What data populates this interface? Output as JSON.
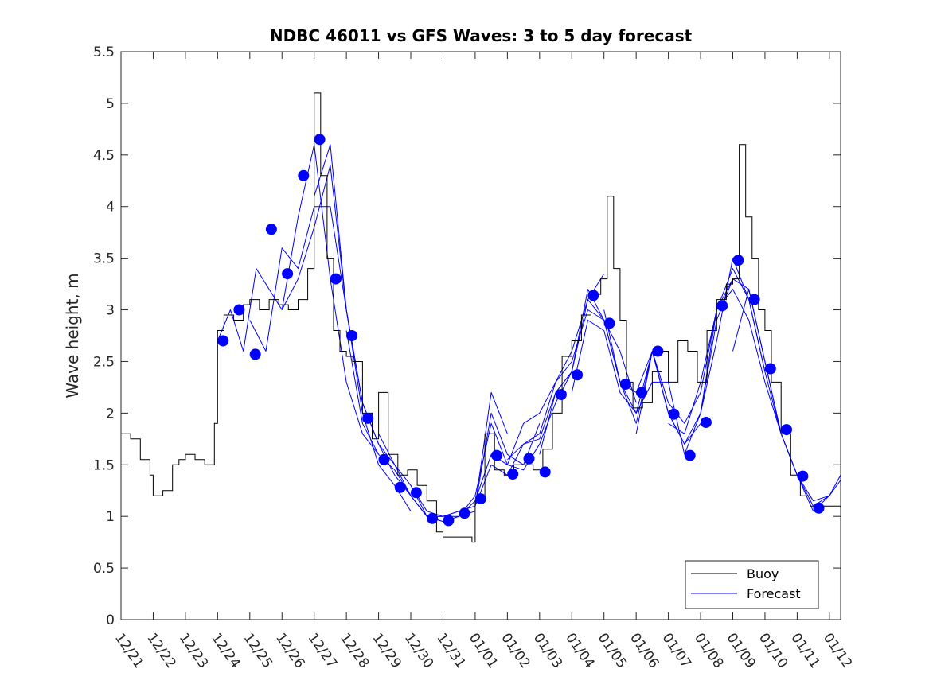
{
  "chart_data": {
    "type": "line",
    "title": "NDBC 46011 vs GFS Waves: 3 to 5 day forecast",
    "xlabel": "",
    "ylabel": "Wave height, m",
    "ylim": [
      0,
      5.5
    ],
    "yticks": [
      0,
      0.5,
      1,
      1.5,
      2,
      2.5,
      3,
      3.5,
      4,
      4.5,
      5,
      5.5
    ],
    "ytick_labels": [
      "0",
      "0.5",
      "1",
      "1.5",
      "2",
      "2.5",
      "3",
      "3.5",
      "4",
      "4.5",
      "5",
      "5.5"
    ],
    "xlim_days": [
      0,
      22.35
    ],
    "xticks_days": [
      0,
      1,
      2,
      3,
      4,
      5,
      6,
      7,
      8,
      9,
      10,
      11,
      12,
      13,
      14,
      15,
      16,
      17,
      18,
      19,
      20,
      21,
      22
    ],
    "xtick_labels": [
      "12/21",
      "12/22",
      "12/23",
      "12/24",
      "12/25",
      "12/26",
      "12/27",
      "12/28",
      "12/29",
      "12/30",
      "12/31",
      "01/01",
      "01/02",
      "01/03",
      "01/04",
      "01/05",
      "01/06",
      "01/07",
      "01/08",
      "01/09",
      "01/10",
      "01/11",
      "01/12"
    ],
    "grid": false,
    "legend": {
      "position": "bottom-right",
      "entries": [
        {
          "label": "Buoy",
          "color": "#000000"
        },
        {
          "label": "Forecast",
          "color": "#0000ff"
        }
      ]
    },
    "buoy_series": {
      "name": "Buoy",
      "color": "#000000",
      "x_days": [
        0,
        0.3,
        0.6,
        0.9,
        1.0,
        1.3,
        1.6,
        1.8,
        2.0,
        2.3,
        2.6,
        2.9,
        3.0,
        3.2,
        3.5,
        3.8,
        4.0,
        4.3,
        4.6,
        4.9,
        5.2,
        5.5,
        5.8,
        6.0,
        6.2,
        6.4,
        6.6,
        6.8,
        7.0,
        7.2,
        7.5,
        7.8,
        8.0,
        8.3,
        8.6,
        8.9,
        9.2,
        9.5,
        9.8,
        10.0,
        10.3,
        10.6,
        10.9,
        11.0,
        11.3,
        11.6,
        11.9,
        12.2,
        12.5,
        12.8,
        13.1,
        13.4,
        13.7,
        14.0,
        14.3,
        14.6,
        14.9,
        15.1,
        15.3,
        15.5,
        15.7,
        15.9,
        16.2,
        16.5,
        16.8,
        17.0,
        17.3,
        17.6,
        17.9,
        18.2,
        18.5,
        18.8,
        19.0,
        19.2,
        19.4,
        19.6,
        19.8,
        20.0,
        20.2,
        20.5,
        20.8,
        21.1,
        21.4,
        21.7,
        22.0,
        22.35
      ],
      "values": [
        1.8,
        1.75,
        1.55,
        1.4,
        1.2,
        1.25,
        1.5,
        1.55,
        1.6,
        1.55,
        1.5,
        1.9,
        2.8,
        2.95,
        2.9,
        3.05,
        3.1,
        3.0,
        3.1,
        3.05,
        3.0,
        3.1,
        3.4,
        5.1,
        4.3,
        3.5,
        2.8,
        2.6,
        2.55,
        2.5,
        2.0,
        1.75,
        2.2,
        1.6,
        1.4,
        1.45,
        1.3,
        1.15,
        0.85,
        0.8,
        0.8,
        0.8,
        0.75,
        1.15,
        1.8,
        1.45,
        1.4,
        1.5,
        1.5,
        1.45,
        1.65,
        2.0,
        2.55,
        2.7,
        2.95,
        3.15,
        3.3,
        4.1,
        3.4,
        2.9,
        2.3,
        2.05,
        2.1,
        2.4,
        2.6,
        2.3,
        2.7,
        2.6,
        2.3,
        2.8,
        3.1,
        3.25,
        3.3,
        4.6,
        3.9,
        3.5,
        3.0,
        2.8,
        2.3,
        1.8,
        1.4,
        1.2,
        1.1,
        1.1,
        1.1,
        1.25
      ]
    },
    "forecast_series": [
      {
        "name": "Forecast",
        "x_days": [
          3.0,
          3.4,
          3.8,
          4.2,
          4.6,
          5.0,
          5.5,
          6.0,
          6.5,
          7.0,
          7.5,
          8.0
        ],
        "values": [
          2.7,
          3.0,
          2.6,
          3.4,
          3.2,
          3.0,
          3.9,
          4.6,
          3.3,
          2.3,
          1.8,
          1.6
        ]
      },
      {
        "name": "Forecast",
        "x_days": [
          4.0,
          4.5,
          5.0,
          5.5,
          6.0,
          6.5,
          7.0,
          7.5,
          8.0,
          8.5,
          9.0
        ],
        "values": [
          2.9,
          2.6,
          3.6,
          3.4,
          4.0,
          4.0,
          3.0,
          2.0,
          1.5,
          1.3,
          1.05
        ]
      },
      {
        "name": "Forecast",
        "x_days": [
          5.0,
          5.5,
          6.0,
          6.5,
          7.0,
          7.5,
          8.0,
          8.5,
          9.0,
          9.5,
          10.0
        ],
        "values": [
          3.0,
          3.3,
          3.8,
          4.4,
          3.0,
          2.1,
          1.7,
          1.4,
          1.2,
          1.0,
          0.95
        ]
      },
      {
        "name": "Forecast",
        "x_days": [
          6.0,
          6.5,
          7.0,
          7.5,
          8.0,
          8.5,
          9.0,
          9.5,
          10.0,
          10.5,
          11.0
        ],
        "values": [
          4.1,
          4.6,
          3.0,
          2.1,
          1.7,
          1.5,
          1.3,
          1.05,
          1.0,
          1.0,
          1.05
        ]
      },
      {
        "name": "Forecast",
        "x_days": [
          7.0,
          7.5,
          8.0,
          8.5,
          9.0,
          9.5,
          10.0,
          10.5,
          11.0,
          11.5,
          12.0
        ],
        "values": [
          2.8,
          1.9,
          1.6,
          1.45,
          1.2,
          1.0,
          1.0,
          1.05,
          1.1,
          2.2,
          1.8
        ]
      },
      {
        "name": "Forecast",
        "x_days": [
          8.0,
          8.5,
          9.0,
          9.5,
          10.0,
          10.5,
          11.0,
          11.5,
          12.0,
          12.5,
          13.0
        ],
        "values": [
          1.8,
          1.5,
          1.2,
          1.0,
          1.0,
          1.05,
          1.1,
          2.0,
          1.6,
          1.5,
          1.9
        ]
      },
      {
        "name": "Forecast",
        "x_days": [
          9.0,
          9.5,
          10.0,
          10.5,
          11.0,
          11.5,
          12.0,
          12.5,
          13.0,
          13.5,
          14.0
        ],
        "values": [
          1.3,
          1.0,
          0.95,
          1.0,
          1.2,
          1.9,
          1.5,
          1.45,
          1.7,
          2.1,
          2.4
        ]
      },
      {
        "name": "Forecast",
        "x_days": [
          10.0,
          10.5,
          11.0,
          11.5,
          12.0,
          12.5,
          13.0,
          13.5,
          14.0,
          14.5,
          15.0
        ],
        "values": [
          0.95,
          1.0,
          1.15,
          1.6,
          1.5,
          1.9,
          2.0,
          2.3,
          2.6,
          3.1,
          3.35
        ]
      },
      {
        "name": "Forecast",
        "x_days": [
          11.0,
          11.5,
          12.0,
          12.5,
          13.0,
          13.5,
          14.0,
          14.5,
          15.0,
          15.5,
          16.0
        ],
        "values": [
          1.1,
          1.5,
          1.4,
          1.7,
          1.8,
          2.3,
          2.5,
          3.0,
          2.9,
          2.6,
          2.1
        ]
      },
      {
        "name": "Forecast",
        "x_days": [
          12.0,
          12.5,
          13.0,
          13.5,
          14.0,
          14.5,
          15.0,
          15.5,
          16.0,
          16.5,
          17.0
        ],
        "values": [
          1.55,
          1.7,
          1.75,
          2.2,
          2.4,
          3.2,
          2.9,
          2.3,
          2.2,
          2.6,
          2.0
        ]
      },
      {
        "name": "Forecast",
        "x_days": [
          13.0,
          13.5,
          14.0,
          14.5,
          15.0,
          15.5,
          16.0,
          16.5,
          17.0,
          17.5,
          18.0
        ],
        "values": [
          1.6,
          2.2,
          2.4,
          3.1,
          2.9,
          2.3,
          2.0,
          2.6,
          2.0,
          1.7,
          1.9
        ]
      },
      {
        "name": "Forecast",
        "x_days": [
          14.0,
          14.5,
          15.0,
          15.5,
          16.0,
          16.5,
          17.0,
          17.5,
          18.0,
          18.5,
          19.0
        ],
        "values": [
          2.2,
          2.9,
          2.8,
          2.2,
          2.0,
          2.3,
          2.3,
          1.6,
          2.0,
          2.9,
          3.3
        ]
      },
      {
        "name": "Forecast",
        "x_days": [
          15.0,
          15.5,
          16.0,
          16.5,
          17.0,
          17.5,
          18.0,
          18.5,
          19.0,
          19.5,
          20.0
        ],
        "values": [
          3.0,
          2.3,
          1.9,
          2.6,
          2.0,
          1.7,
          2.0,
          3.0,
          3.4,
          3.1,
          2.4
        ]
      },
      {
        "name": "Forecast",
        "x_days": [
          16.0,
          16.5,
          17.0,
          17.5,
          18.0,
          18.5,
          19.0,
          19.5,
          20.0,
          20.5,
          21.0
        ],
        "values": [
          1.8,
          2.6,
          2.1,
          1.9,
          2.2,
          3.0,
          3.3,
          3.2,
          2.5,
          1.8,
          1.4
        ]
      },
      {
        "name": "Forecast",
        "x_days": [
          17.0,
          17.5,
          18.0,
          18.5,
          19.0,
          19.5,
          20.0,
          20.5,
          21.0,
          21.5,
          22.0
        ],
        "values": [
          1.9,
          1.8,
          2.3,
          3.0,
          3.2,
          2.9,
          2.3,
          1.8,
          1.4,
          1.15,
          1.2
        ]
      },
      {
        "name": "Forecast",
        "x_days": [
          18.0,
          18.5,
          19.0,
          19.5,
          20.0,
          20.5,
          21.0,
          21.5,
          22.0,
          22.35
        ],
        "values": [
          2.0,
          2.7,
          3.5,
          3.1,
          2.4,
          1.8,
          1.4,
          1.1,
          1.2,
          1.35
        ]
      },
      {
        "name": "Forecast",
        "x_days": [
          19.0,
          19.5,
          20.0,
          20.5,
          21.0,
          21.5,
          22.0,
          22.35
        ],
        "values": [
          2.6,
          3.2,
          2.5,
          1.8,
          1.4,
          1.05,
          1.2,
          1.4
        ]
      }
    ],
    "forecast_markers": {
      "name": "Forecast points",
      "color": "#0000ff",
      "x_days": [
        3.17,
        3.67,
        4.17,
        4.67,
        5.17,
        5.67,
        6.17,
        6.67,
        7.17,
        7.67,
        8.17,
        8.67,
        9.17,
        9.67,
        10.17,
        10.67,
        11.17,
        11.67,
        12.17,
        12.67,
        13.17,
        13.67,
        14.17,
        14.67,
        15.17,
        15.67,
        16.17,
        16.67,
        17.17,
        17.67,
        18.17,
        18.67,
        19.17,
        19.67,
        20.17,
        20.67,
        21.17,
        21.67
      ],
      "values": [
        2.7,
        3.0,
        2.57,
        3.78,
        3.35,
        4.3,
        4.65,
        3.3,
        2.75,
        1.95,
        1.55,
        1.28,
        1.23,
        0.98,
        0.96,
        1.03,
        1.17,
        1.59,
        1.41,
        1.56,
        1.43,
        2.18,
        2.37,
        3.14,
        2.87,
        2.28,
        2.2,
        2.6,
        1.99,
        1.59,
        1.91,
        3.04,
        3.48,
        3.1,
        2.43,
        1.84,
        1.39,
        1.08
      ]
    }
  }
}
